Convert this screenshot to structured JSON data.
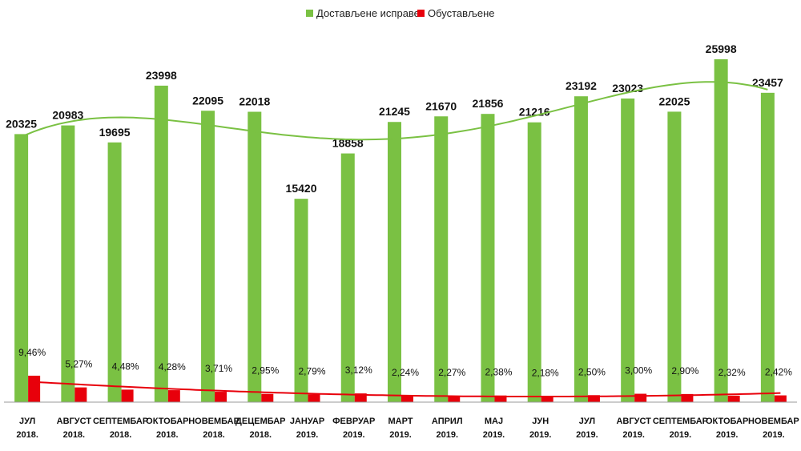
{
  "chart_data": {
    "type": "bar",
    "legend_position": "top-center",
    "grid": false,
    "categories": [
      [
        "ЈУЛ",
        "2018."
      ],
      [
        "АВГУСТ",
        "2018."
      ],
      [
        "СЕПТЕМБАР",
        "2018."
      ],
      [
        "ОКТОБАР",
        "2018."
      ],
      [
        "НОВЕМБАР",
        "2018."
      ],
      [
        "ДЕЦЕМБАР",
        "2018."
      ],
      [
        "ЈАНУАР",
        "2019."
      ],
      [
        "ФЕBРУАР",
        "2019."
      ],
      [
        "МАРТ",
        "2019."
      ],
      [
        "АПРИЛ",
        "2019."
      ],
      [
        "МАЈ",
        "2019."
      ],
      [
        "ЈУН",
        "2019."
      ],
      [
        "ЈУЛ",
        "2019."
      ],
      [
        "АВГУСТ",
        "2019."
      ],
      [
        "СЕПТЕМБАР",
        "2019."
      ],
      [
        "ОКТОБАР",
        "2019."
      ],
      [
        "НОВЕМБАР",
        "2019."
      ]
    ],
    "series": [
      {
        "name": "Достављене исправе",
        "color": "#7ac143",
        "values": [
          20325,
          20983,
          19695,
          23998,
          22095,
          22018,
          15420,
          18858,
          21245,
          21670,
          21856,
          21216,
          23192,
          23023,
          22025,
          25998,
          23457
        ],
        "labels": [
          "20325",
          "20983",
          "19695",
          "23998",
          "22095",
          "22018",
          "15420",
          "18858",
          "21245",
          "21670",
          "21856",
          "21216",
          "23192",
          "23023",
          "22025",
          "25998",
          "23457"
        ]
      },
      {
        "name": "Обустављене",
        "color": "#e8000b",
        "values": [
          9.46,
          5.27,
          4.48,
          4.28,
          3.71,
          2.95,
          2.79,
          3.12,
          2.24,
          2.27,
          2.38,
          2.18,
          2.5,
          3.0,
          2.9,
          2.32,
          2.42
        ],
        "labels": [
          "9,46%",
          "5,27%",
          "4,48%",
          "4,28%",
          "3,71%",
          "2,95%",
          "2,79%",
          "3,12%",
          "2,24%",
          "2,27%",
          "2,38%",
          "2,18%",
          "2,50%",
          "3,00%",
          "2,90%",
          "2,32%",
          "2,42%"
        ]
      }
    ],
    "trendlines": true
  }
}
